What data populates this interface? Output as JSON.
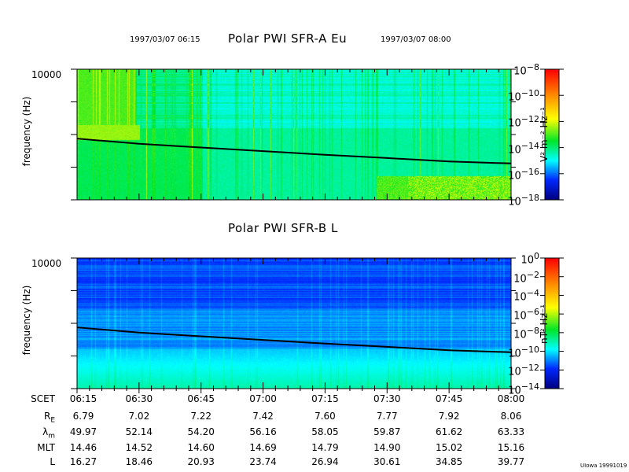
{
  "header": {
    "start_time": "1997/03/07 06:15",
    "end_time": "1997/03/07 08:00"
  },
  "chart_data": [
    {
      "type": "heatmap",
      "title": "Polar PWI SFR-A Eu",
      "ylabel": "frequency (Hz)",
      "y_tick_label": "10000",
      "yscale": "log",
      "colorbar": {
        "label": "V² m⁻² Hz⁻¹",
        "ticks": [
          "10",
          "10",
          "10",
          "10",
          "10",
          "10"
        ],
        "exponents": [
          "−8",
          "−10",
          "−12",
          "−14",
          "−16",
          "−18"
        ],
        "range": [
          1e-18,
          1e-08
        ]
      },
      "overlay_line": {
        "x": [
          "06:15",
          "06:30",
          "06:45",
          "07:00",
          "07:15",
          "07:30",
          "07:45",
          "08:00"
        ],
        "y": [
          75,
          52,
          40,
          31,
          24,
          19,
          15,
          13
        ]
      }
    },
    {
      "type": "heatmap",
      "title": "Polar PWI SFR-B L",
      "ylabel": "frequency (Hz)",
      "y_tick_label": "10000",
      "yscale": "log",
      "colorbar": {
        "label": "nT² Hz⁻¹",
        "ticks": [
          "10",
          "10",
          "10",
          "10",
          "10",
          "10",
          "10",
          "10"
        ],
        "exponents": [
          "0",
          "−2",
          "−4",
          "−6",
          "−8",
          "−10",
          "−12",
          "−14"
        ],
        "range": [
          1e-14,
          1
        ]
      },
      "overlay_line": {
        "x": [
          "06:15",
          "06:30",
          "06:45",
          "07:00",
          "07:15",
          "07:30",
          "07:45",
          "08:00"
        ],
        "y": [
          75,
          52,
          40,
          31,
          24,
          19,
          15,
          13
        ]
      }
    }
  ],
  "ephemeris": {
    "rows": [
      {
        "label": "SCET",
        "sub": "",
        "values": [
          "06:15",
          "06:30",
          "06:45",
          "07:00",
          "07:15",
          "07:30",
          "07:45",
          "08:00"
        ]
      },
      {
        "label": "R",
        "sub": "E",
        "values": [
          "6.79",
          "7.02",
          "7.22",
          "7.42",
          "7.60",
          "7.77",
          "7.92",
          "8.06"
        ]
      },
      {
        "label": "λ",
        "sub": "m",
        "values": [
          "49.97",
          "52.14",
          "54.20",
          "56.16",
          "58.05",
          "59.87",
          "61.62",
          "63.33"
        ]
      },
      {
        "label": "MLT",
        "sub": "",
        "values": [
          "14.46",
          "14.52",
          "14.60",
          "14.69",
          "14.79",
          "14.90",
          "15.02",
          "15.16"
        ]
      },
      {
        "label": "L",
        "sub": "",
        "values": [
          "16.27",
          "18.46",
          "20.93",
          "23.74",
          "26.94",
          "30.61",
          "34.85",
          "39.77"
        ]
      }
    ]
  },
  "footer": {
    "credit": "UIowa 19991019"
  }
}
